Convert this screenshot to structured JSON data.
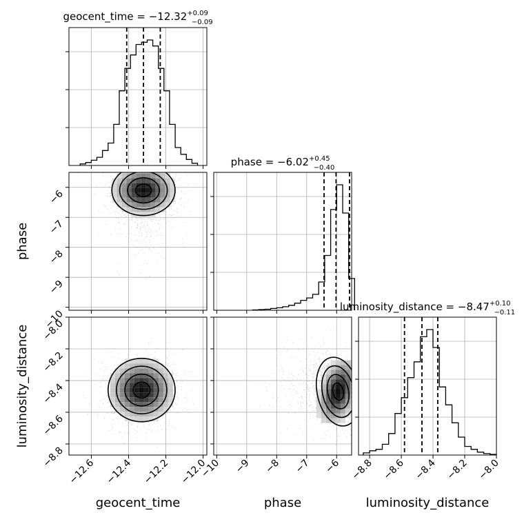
{
  "chart_data": {
    "type": "corner",
    "parameters": [
      "geocent_time",
      "phase",
      "luminosity_distance"
    ],
    "titles": [
      {
        "name": "geocent_time",
        "median": "−12.32",
        "plus": "+0.09",
        "minus": "−0.09"
      },
      {
        "name": "phase",
        "median": "−6.02",
        "plus": "+0.45",
        "minus": "−0.40"
      },
      {
        "name": "luminosity_distance",
        "median": "−8.47",
        "plus": "+0.10",
        "minus": "−0.11"
      }
    ],
    "axis_labels": {
      "x": [
        "geocent_time",
        "phase",
        "luminosity_distance"
      ],
      "y": [
        "phase",
        "luminosity_distance"
      ]
    },
    "ranges": [
      [
        -12.72,
        -11.98
      ],
      [
        -10.1,
        -5.5
      ],
      [
        -8.87,
        -8.0
      ]
    ],
    "ticks": {
      "geocent_time": [
        "−12.6",
        "−12.4",
        "−12.2",
        "−12.0"
      ],
      "phase": [
        "−10",
        "−9",
        "−8",
        "−7",
        "−6"
      ],
      "luminosity_distance": [
        "−8.8",
        "−8.6",
        "−8.4",
        "−8.2",
        "−8.0"
      ]
    },
    "tick_values": {
      "geocent_time": [
        -12.6,
        -12.4,
        -12.2,
        -12.0
      ],
      "phase": [
        -10,
        -9,
        -8,
        -7,
        -6
      ],
      "luminosity_distance": [
        -8.8,
        -8.6,
        -8.4,
        -8.2,
        -8.0
      ]
    },
    "quantile_lines": {
      "geocent_time": [
        -12.41,
        -12.32,
        -12.23
      ],
      "phase": [
        -6.42,
        -6.02,
        -5.57
      ],
      "luminosity_distance": [
        -8.58,
        -8.47,
        -8.37
      ]
    },
    "histograms": {
      "geocent_time": {
        "edges": [
          -12.66,
          -12.63,
          -12.6,
          -12.57,
          -12.54,
          -12.51,
          -12.48,
          -12.45,
          -12.42,
          -12.39,
          -12.36,
          -12.33,
          -12.3,
          -12.27,
          -12.24,
          -12.21,
          -12.18,
          -12.15,
          -12.12,
          -12.09,
          -12.06,
          -12.03
        ],
        "counts": [
          2,
          4,
          7,
          11,
          20,
          30,
          55,
          100,
          130,
          148,
          162,
          165,
          168,
          160,
          130,
          100,
          55,
          24,
          15,
          8,
          3
        ]
      },
      "phase": {
        "edges": [
          -8.8,
          -8.6,
          -8.4,
          -8.2,
          -8.0,
          -7.8,
          -7.6,
          -7.4,
          -7.2,
          -7.0,
          -6.8,
          -6.6,
          -6.4,
          -6.2,
          -6.0,
          -5.8,
          -5.6,
          -5.4
        ],
        "counts": [
          1,
          2,
          3,
          5,
          7,
          10,
          14,
          20,
          28,
          35,
          45,
          80,
          155,
          285,
          355,
          275,
          90
        ]
      },
      "luminosity_distance": {
        "edges": [
          -8.84,
          -8.8,
          -8.76,
          -8.72,
          -8.68,
          -8.64,
          -8.6,
          -8.56,
          -8.52,
          -8.48,
          -8.44,
          -8.4,
          -8.36,
          -8.32,
          -8.28,
          -8.24,
          -8.2,
          -8.16,
          -8.12,
          -8.08,
          -8.04,
          -8.0
        ],
        "counts": [
          3,
          6,
          8,
          15,
          30,
          58,
          80,
          108,
          130,
          165,
          175,
          150,
          95,
          70,
          45,
          25,
          12,
          8,
          4,
          2,
          1
        ]
      }
    },
    "contours": [
      {
        "x": "geocent_time",
        "y": "phase",
        "center": [
          -12.32,
          -6.1
        ],
        "spread": [
          0.085,
          0.42
        ],
        "rho": 0.0
      },
      {
        "x": "geocent_time",
        "y": "luminosity_distance",
        "center": [
          -12.33,
          -8.46
        ],
        "spread": [
          0.09,
          0.1
        ],
        "rho": 0.0
      },
      {
        "x": "phase",
        "y": "luminosity_distance",
        "center": [
          -5.95,
          -8.47
        ],
        "spread": [
          0.35,
          0.11
        ],
        "rho": -0.35
      }
    ],
    "grid": true,
    "legend": "none"
  }
}
